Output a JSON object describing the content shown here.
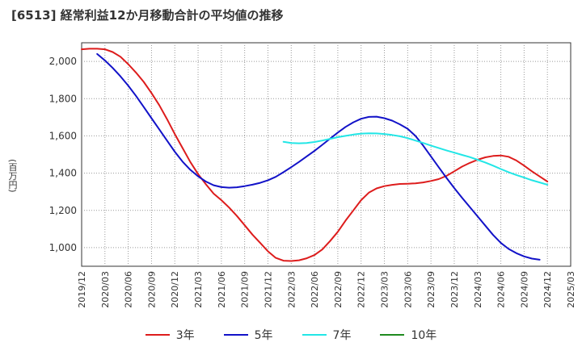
{
  "chart_data": {
    "type": "line",
    "title": "[6513]  経常利益12か月移動合計の平均値の推移",
    "ylabel": "(百万円)",
    "xlabel": "",
    "ylim": [
      900,
      2100
    ],
    "yticks": [
      "1,000",
      "1,200",
      "1,400",
      "1,600",
      "1,800",
      "2,000"
    ],
    "ytick_values": [
      1000,
      1200,
      1400,
      1600,
      1800,
      2000
    ],
    "xticks": [
      "2019/12",
      "2020/03",
      "2020/06",
      "2020/09",
      "2020/12",
      "2021/03",
      "2021/06",
      "2021/09",
      "2021/12",
      "2022/03",
      "2022/06",
      "2022/09",
      "2022/12",
      "2023/03",
      "2023/06",
      "2023/09",
      "2023/12",
      "2024/03",
      "2024/06",
      "2024/09",
      "2024/12",
      "2025/03"
    ],
    "grid": true,
    "legend_position": "bottom",
    "series": [
      {
        "name": "3年",
        "color": "#dd1c1c",
        "points": [
          [
            "2019/12",
            2065
          ],
          [
            "2020/01",
            2068
          ],
          [
            "2020/02",
            2068
          ],
          [
            "2020/03",
            2065
          ],
          [
            "2020/04",
            2050
          ],
          [
            "2020/05",
            2025
          ],
          [
            "2020/06",
            1985
          ],
          [
            "2020/07",
            1940
          ],
          [
            "2020/08",
            1890
          ],
          [
            "2020/09",
            1830
          ],
          [
            "2020/10",
            1765
          ],
          [
            "2020/11",
            1690
          ],
          [
            "2020/12",
            1610
          ],
          [
            "2021/01",
            1535
          ],
          [
            "2021/02",
            1460
          ],
          [
            "2021/03",
            1395
          ],
          [
            "2021/04",
            1340
          ],
          [
            "2021/05",
            1290
          ],
          [
            "2021/06",
            1255
          ],
          [
            "2021/07",
            1215
          ],
          [
            "2021/08",
            1170
          ],
          [
            "2021/09",
            1120
          ],
          [
            "2021/10",
            1070
          ],
          [
            "2021/11",
            1025
          ],
          [
            "2021/12",
            980
          ],
          [
            "2022/01",
            945
          ],
          [
            "2022/02",
            930
          ],
          [
            "2022/03",
            928
          ],
          [
            "2022/04",
            932
          ],
          [
            "2022/05",
            943
          ],
          [
            "2022/06",
            960
          ],
          [
            "2022/07",
            990
          ],
          [
            "2022/08",
            1035
          ],
          [
            "2022/09",
            1085
          ],
          [
            "2022/10",
            1145
          ],
          [
            "2022/11",
            1200
          ],
          [
            "2022/12",
            1255
          ],
          [
            "2023/01",
            1295
          ],
          [
            "2023/02",
            1318
          ],
          [
            "2023/03",
            1330
          ],
          [
            "2023/04",
            1337
          ],
          [
            "2023/05",
            1342
          ],
          [
            "2023/06",
            1343
          ],
          [
            "2023/07",
            1345
          ],
          [
            "2023/08",
            1350
          ],
          [
            "2023/09",
            1358
          ],
          [
            "2023/10",
            1368
          ],
          [
            "2023/11",
            1385
          ],
          [
            "2023/12",
            1410
          ],
          [
            "2024/01",
            1435
          ],
          [
            "2024/02",
            1455
          ],
          [
            "2024/03",
            1472
          ],
          [
            "2024/04",
            1485
          ],
          [
            "2024/05",
            1492
          ],
          [
            "2024/06",
            1495
          ],
          [
            "2024/07",
            1488
          ],
          [
            "2024/08",
            1468
          ],
          [
            "2024/09",
            1440
          ],
          [
            "2024/10",
            1410
          ],
          [
            "2024/11",
            1382
          ],
          [
            "2024/12",
            1355
          ]
        ]
      },
      {
        "name": "5年",
        "color": "#1212c8",
        "points": [
          [
            "2020/02",
            2040
          ],
          [
            "2020/03",
            2005
          ],
          [
            "2020/04",
            1965
          ],
          [
            "2020/05",
            1920
          ],
          [
            "2020/06",
            1870
          ],
          [
            "2020/07",
            1815
          ],
          [
            "2020/08",
            1755
          ],
          [
            "2020/09",
            1695
          ],
          [
            "2020/10",
            1635
          ],
          [
            "2020/11",
            1575
          ],
          [
            "2020/12",
            1515
          ],
          [
            "2021/01",
            1462
          ],
          [
            "2021/02",
            1418
          ],
          [
            "2021/03",
            1383
          ],
          [
            "2021/04",
            1355
          ],
          [
            "2021/05",
            1335
          ],
          [
            "2021/06",
            1325
          ],
          [
            "2021/07",
            1322
          ],
          [
            "2021/08",
            1324
          ],
          [
            "2021/09",
            1330
          ],
          [
            "2021/10",
            1338
          ],
          [
            "2021/11",
            1348
          ],
          [
            "2021/12",
            1362
          ],
          [
            "2022/01",
            1380
          ],
          [
            "2022/02",
            1405
          ],
          [
            "2022/03",
            1432
          ],
          [
            "2022/04",
            1460
          ],
          [
            "2022/05",
            1490
          ],
          [
            "2022/06",
            1520
          ],
          [
            "2022/07",
            1552
          ],
          [
            "2022/08",
            1585
          ],
          [
            "2022/09",
            1618
          ],
          [
            "2022/10",
            1648
          ],
          [
            "2022/11",
            1673
          ],
          [
            "2022/12",
            1692
          ],
          [
            "2023/01",
            1702
          ],
          [
            "2023/02",
            1703
          ],
          [
            "2023/03",
            1695
          ],
          [
            "2023/04",
            1682
          ],
          [
            "2023/05",
            1662
          ],
          [
            "2023/06",
            1638
          ],
          [
            "2023/07",
            1600
          ],
          [
            "2023/08",
            1548
          ],
          [
            "2023/09",
            1490
          ],
          [
            "2023/10",
            1432
          ],
          [
            "2023/11",
            1375
          ],
          [
            "2023/12",
            1320
          ],
          [
            "2024/01",
            1268
          ],
          [
            "2024/02",
            1218
          ],
          [
            "2024/03",
            1168
          ],
          [
            "2024/04",
            1118
          ],
          [
            "2024/05",
            1068
          ],
          [
            "2024/06",
            1025
          ],
          [
            "2024/07",
            993
          ],
          [
            "2024/08",
            970
          ],
          [
            "2024/09",
            953
          ],
          [
            "2024/10",
            941
          ],
          [
            "2024/11",
            935
          ]
        ]
      },
      {
        "name": "7年",
        "color": "#22e6e6",
        "points": [
          [
            "2022/02",
            1568
          ],
          [
            "2022/03",
            1562
          ],
          [
            "2022/04",
            1560
          ],
          [
            "2022/05",
            1562
          ],
          [
            "2022/06",
            1567
          ],
          [
            "2022/07",
            1575
          ],
          [
            "2022/08",
            1584
          ],
          [
            "2022/09",
            1593
          ],
          [
            "2022/10",
            1600
          ],
          [
            "2022/11",
            1607
          ],
          [
            "2022/12",
            1612
          ],
          [
            "2023/01",
            1614
          ],
          [
            "2023/02",
            1613
          ],
          [
            "2023/03",
            1610
          ],
          [
            "2023/04",
            1605
          ],
          [
            "2023/05",
            1598
          ],
          [
            "2023/06",
            1588
          ],
          [
            "2023/07",
            1575
          ],
          [
            "2023/08",
            1562
          ],
          [
            "2023/09",
            1548
          ],
          [
            "2023/10",
            1535
          ],
          [
            "2023/11",
            1522
          ],
          [
            "2023/12",
            1510
          ],
          [
            "2024/01",
            1498
          ],
          [
            "2024/02",
            1486
          ],
          [
            "2024/03",
            1472
          ],
          [
            "2024/04",
            1457
          ],
          [
            "2024/05",
            1440
          ],
          [
            "2024/06",
            1422
          ],
          [
            "2024/07",
            1405
          ],
          [
            "2024/08",
            1390
          ],
          [
            "2024/09",
            1376
          ],
          [
            "2024/10",
            1362
          ],
          [
            "2024/11",
            1350
          ],
          [
            "2024/12",
            1338
          ]
        ]
      },
      {
        "name": "10年",
        "color": "#1f8a1f",
        "points": []
      }
    ]
  }
}
